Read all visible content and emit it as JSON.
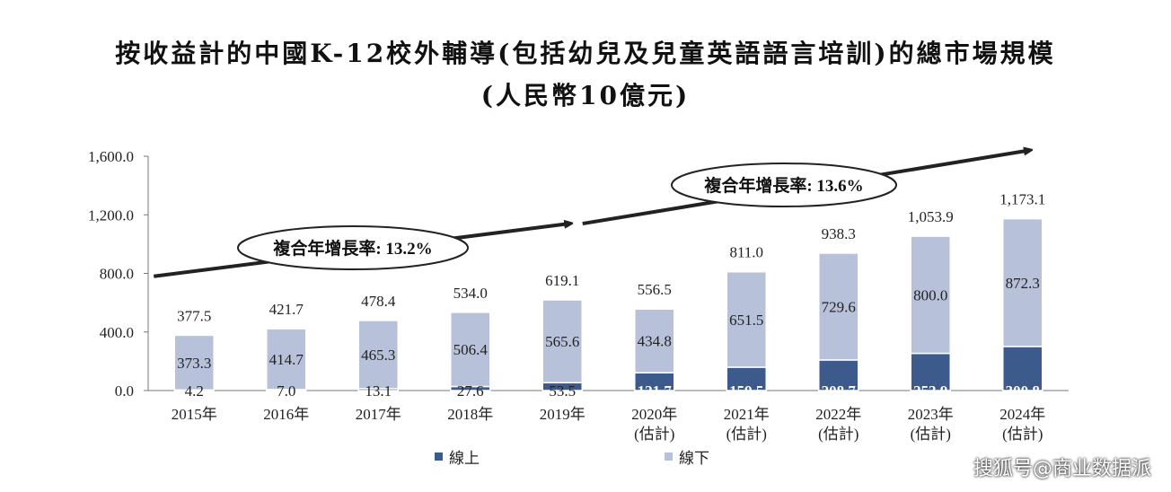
{
  "title_line1": "按收益計的中國K-12校外輔導(包括幼兒及兒童英語語言培訓)的總市場規模",
  "title_line2": "(人民幣10億元)",
  "watermark": "搜狐号@商业数据派",
  "chart_data": {
    "type": "bar",
    "stacked": true,
    "categories": [
      "2015年",
      "2016年",
      "2017年",
      "2018年",
      "2019年",
      "2020年",
      "2021年",
      "2022年",
      "2023年",
      "2024年"
    ],
    "category_sublabels": [
      "",
      "",
      "",
      "",
      "",
      "(估計)",
      "(估計)",
      "(估計)",
      "(估計)",
      "(估計)"
    ],
    "series": [
      {
        "name": "線上",
        "color": "#3d5a8c",
        "values": [
          4.2,
          7.0,
          13.1,
          27.6,
          53.5,
          121.7,
          159.5,
          208.7,
          253.9,
          300.8
        ],
        "labels": [
          "4.2",
          "7.0",
          "13.1",
          "27.6",
          "53.5",
          "121.7",
          "159.5",
          "208.7",
          "253.9",
          "300.8"
        ]
      },
      {
        "name": "線下",
        "color": "#b7c2da",
        "values": [
          373.3,
          414.7,
          465.3,
          506.4,
          565.6,
          434.8,
          651.5,
          729.6,
          800.0,
          872.3
        ],
        "labels": [
          "373.3",
          "414.7",
          "465.3",
          "506.4",
          "565.6",
          "434.8",
          "651.5",
          "729.6",
          "800.0",
          "872.3"
        ]
      }
    ],
    "totals": [
      "377.5",
      "421.7",
      "478.4",
      "534.0",
      "619.1",
      "556.5",
      "811.0",
      "938.3",
      "1,053.9",
      "1,173.1"
    ],
    "ylim": [
      0,
      1600
    ],
    "yticks": [
      0,
      400,
      800,
      1200,
      1600
    ],
    "ytick_labels": [
      "0.0",
      "400.0",
      "800.0",
      "1,200.0",
      "1,600.0"
    ],
    "grid": false,
    "legend_position": "bottom",
    "annotations": [
      {
        "text": "複合年增長率: 13.2%",
        "from_category": 0,
        "to_category": 4
      },
      {
        "text": "複合年增長率: 13.6%",
        "from_category": 5,
        "to_category": 9
      }
    ]
  }
}
